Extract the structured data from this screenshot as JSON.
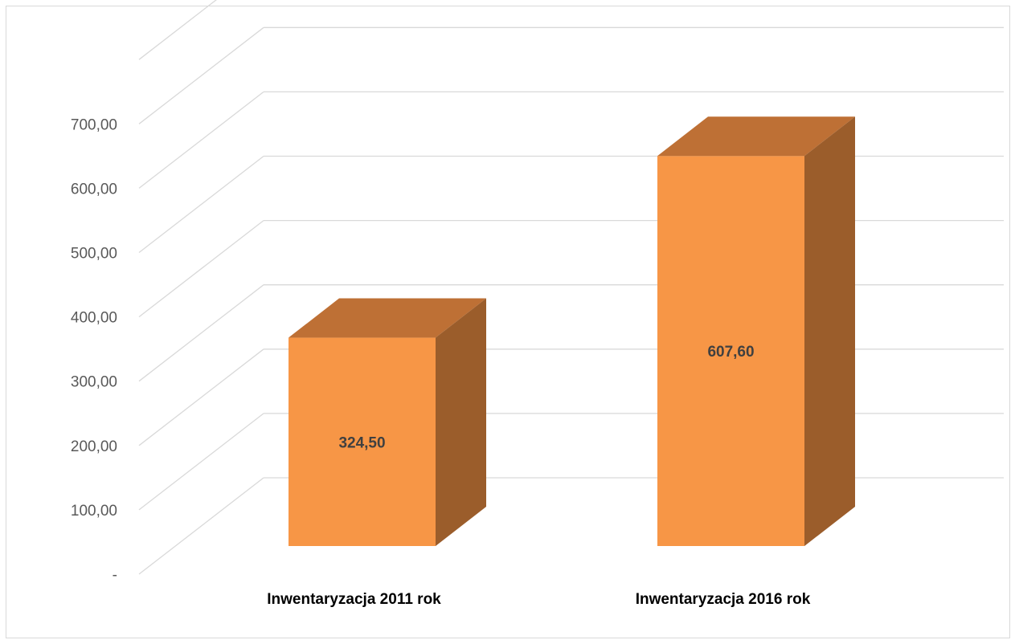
{
  "chart_data": {
    "type": "bar",
    "style": "3d-column",
    "categories": [
      "Inwentaryzacja 2011 rok",
      "Inwentaryzacja 2016 rok"
    ],
    "values": [
      324.5,
      607.6
    ],
    "data_labels": [
      "324,50",
      "607,60"
    ],
    "y_ticks": [
      {
        "value": 0,
        "label": "-"
      },
      {
        "value": 100,
        "label": "100,00"
      },
      {
        "value": 200,
        "label": "200,00"
      },
      {
        "value": 300,
        "label": "300,00"
      },
      {
        "value": 400,
        "label": "400,00"
      },
      {
        "value": 500,
        "label": "500,00"
      },
      {
        "value": 600,
        "label": "600,00"
      },
      {
        "value": 700,
        "label": "700,00"
      }
    ],
    "ylim": [
      0,
      800
    ],
    "grid": true,
    "legend": "none",
    "colors": {
      "front": "#f79646",
      "top": "#be7035",
      "side": "#9b5d2b",
      "grid": "#d9d9d9"
    }
  }
}
